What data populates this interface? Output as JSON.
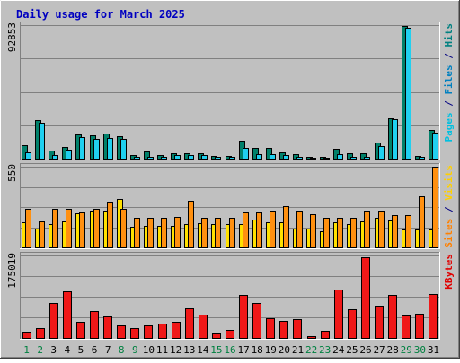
{
  "chart_data": {
    "type": "bar",
    "title": "Daily usage for March 2025",
    "days": [
      1,
      2,
      3,
      4,
      5,
      6,
      7,
      8,
      9,
      10,
      11,
      12,
      13,
      14,
      15,
      16,
      17,
      18,
      19,
      20,
      21,
      22,
      23,
      24,
      25,
      26,
      27,
      28,
      29,
      30,
      31
    ],
    "weekend_days": [
      1,
      2,
      8,
      9,
      15,
      16,
      22,
      23,
      29,
      30
    ],
    "panels": [
      {
        "id": "hits",
        "max_label": "92853",
        "ymax": 92853,
        "labels": [
          {
            "text": "Pages",
            "color": "#00c0e0"
          },
          {
            "text": " / ",
            "color": "#000080"
          },
          {
            "text": "Files",
            "color": "#0080c0"
          },
          {
            "text": " / ",
            "color": "#000080"
          },
          {
            "text": "Hits",
            "color": "#008080"
          }
        ],
        "series": [
          {
            "name": "Hits",
            "color": "#00806a",
            "values": [
              9100,
              26500,
              5700,
              8300,
              17000,
              16200,
              17400,
              15700,
              2700,
              4800,
              2800,
              3600,
              3600,
              3600,
              1900,
              1900,
              12500,
              7400,
              7700,
              4200,
              3200,
              1500,
              1500,
              7100,
              3500,
              3900,
              11400,
              28200,
              92000,
              1800,
              19700
            ]
          },
          {
            "name": "Files",
            "color": "#20d0f0",
            "values": [
              4200,
              25000,
              2500,
              6100,
              15200,
              13700,
              14100,
              14000,
              1500,
              1500,
              1500,
              2200,
              2200,
              2200,
              1500,
              1500,
              7300,
              3300,
              3200,
              2300,
              1500,
              700,
              700,
              3100,
              1500,
              1500,
              8900,
              27500,
              91000,
              1500,
              18100
            ]
          },
          {
            "name": "Pages",
            "color": "#00c0e0",
            "values": [
              0,
              0,
              0,
              0,
              0,
              0,
              0,
              0,
              0,
              0,
              0,
              0,
              0,
              0,
              0,
              0,
              0,
              0,
              0,
              0,
              0,
              0,
              0,
              0,
              0,
              0,
              0,
              0,
              0,
              0,
              0
            ]
          }
        ]
      },
      {
        "id": "sites",
        "max_label": "550",
        "ymax": 550,
        "labels": [
          {
            "text": "Sites",
            "color": "#ff8000"
          },
          {
            "text": " / ",
            "color": "#000080"
          },
          {
            "text": "Visits",
            "color": "#ffd000"
          }
        ],
        "series": [
          {
            "name": "Visits",
            "color": "#ffe000",
            "values": [
              170,
              130,
              160,
              180,
              230,
              250,
              250,
              330,
              140,
              145,
              145,
              145,
              160,
              165,
              160,
              160,
              160,
              190,
              170,
              170,
              130,
              130,
              110,
              170,
              160,
              175,
              200,
              185,
              120,
              120,
              120
            ]
          },
          {
            "name": "Sites",
            "color": "#ff9010",
            "values": [
              260,
              175,
              260,
              260,
              240,
              260,
              310,
              260,
              200,
              200,
              200,
              205,
              320,
              200,
              200,
              200,
              240,
              240,
              250,
              280,
              250,
              225,
              200,
              200,
              200,
              250,
              250,
              220,
              220,
              350,
              550
            ]
          }
        ]
      },
      {
        "id": "kbytes",
        "max_label": "175019",
        "ymax": 175019,
        "labels": [
          {
            "text": "KBytes",
            "color": "#e00000"
          }
        ],
        "series": [
          {
            "name": "KBytes",
            "color": "#f01818",
            "values": [
              14000,
              21000,
              74000,
              98000,
              35000,
              57000,
              46000,
              27000,
              21000,
              27000,
              31000,
              34000,
              62000,
              50000,
              10000,
              17000,
              91000,
              75000,
              41000,
              37000,
              39000,
              4000,
              15000,
              102000,
              61000,
              171000,
              68000,
              91000,
              48000,
              52000,
              94000
            ]
          }
        ]
      }
    ]
  }
}
